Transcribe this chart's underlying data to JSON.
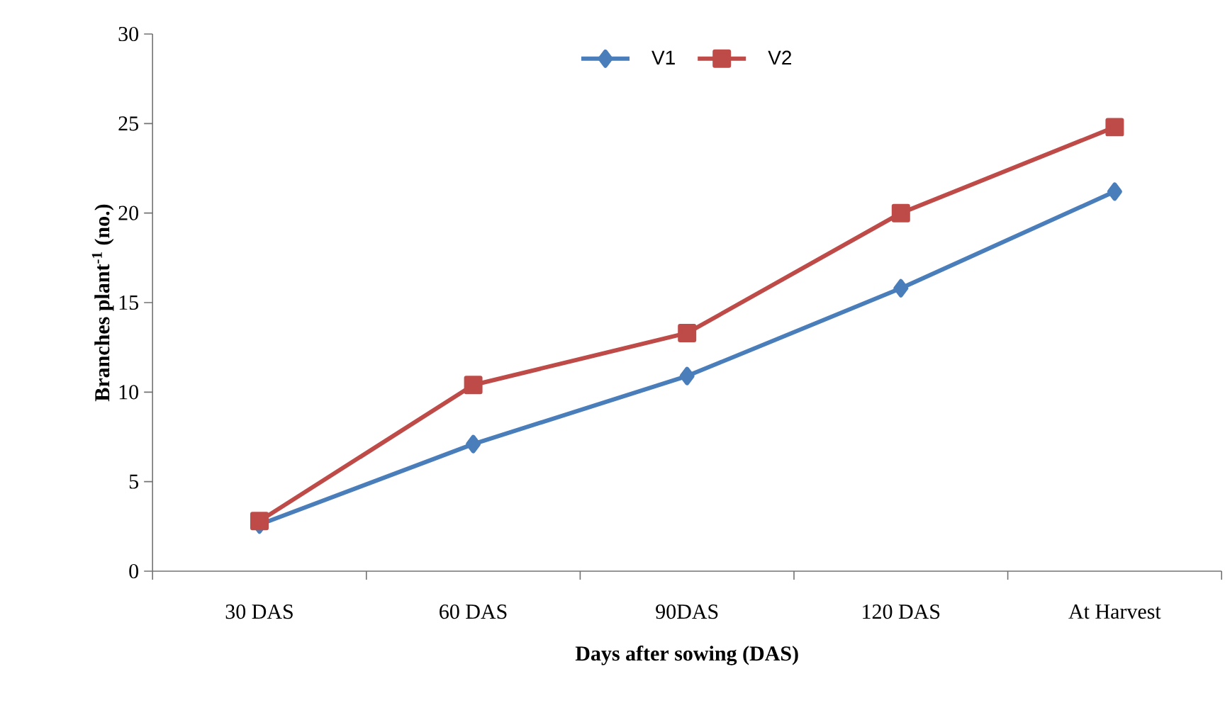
{
  "chart_data": {
    "type": "line",
    "xlabel": "Days after sowing (DAS)",
    "ylabel": "Branches plant$^{-1}$ (no.)",
    "categories": [
      "30 DAS",
      "60 DAS",
      "90DAS",
      "120 DAS",
      "At Harvest"
    ],
    "series": [
      {
        "name": "V1",
        "color": "#4a7ebb",
        "marker": "diamond",
        "values": [
          2.6,
          7.1,
          10.9,
          15.8,
          21.2
        ]
      },
      {
        "name": "V2",
        "color": "#be4b48",
        "marker": "square",
        "values": [
          2.8,
          10.4,
          13.3,
          20.0,
          24.8
        ]
      }
    ],
    "ylim": [
      0,
      30
    ],
    "yticks": [
      0,
      5,
      10,
      15,
      20,
      25,
      30
    ],
    "grid": false,
    "legend": "top",
    "line_style": "solid"
  }
}
